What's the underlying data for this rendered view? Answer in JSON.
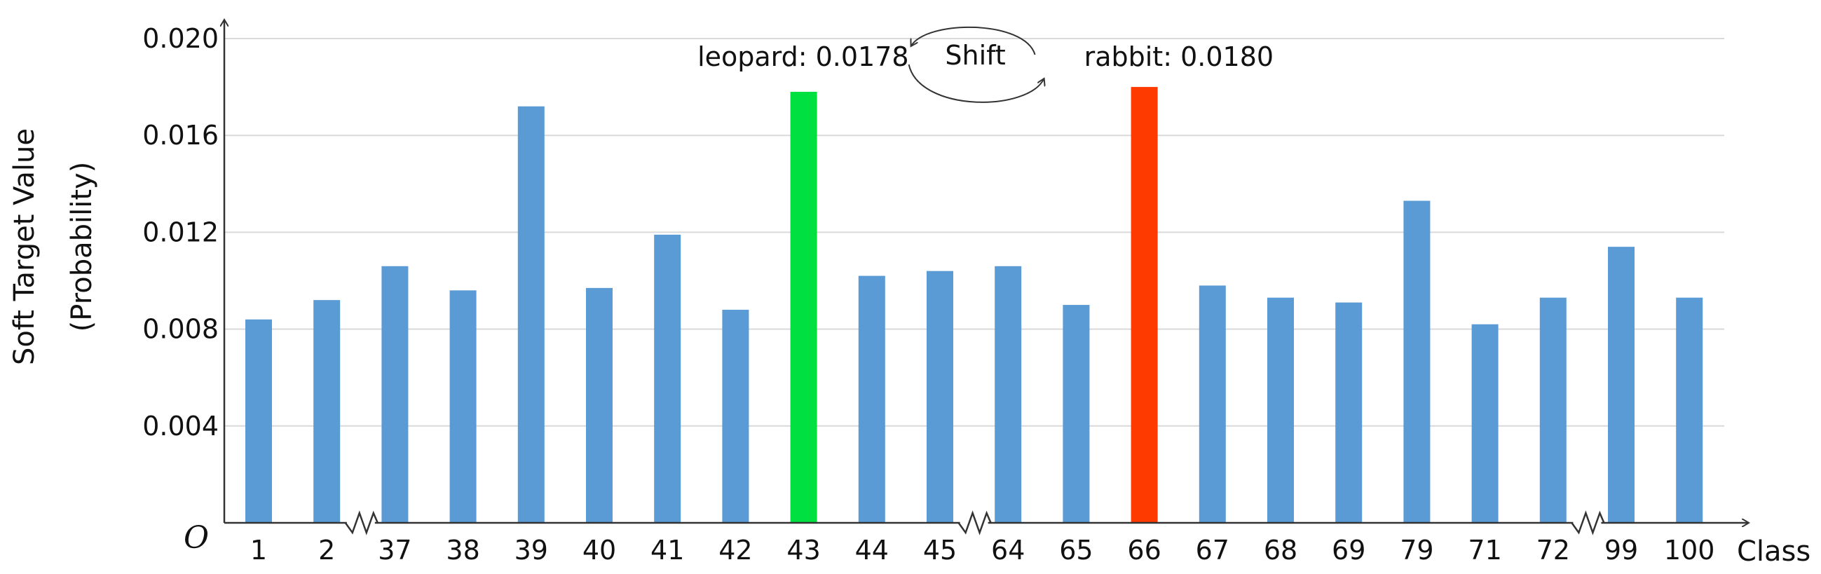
{
  "chart_data": {
    "type": "bar",
    "title": "",
    "ylabel": "Soft Target Value",
    "ylabel_sub": "(Probability)",
    "xlabel": "Class",
    "origin_label": "O",
    "ylim": [
      0,
      0.02
    ],
    "yticks": [
      "0.004",
      "0.008",
      "0.012",
      "0.016",
      "0.020"
    ],
    "ytick_values": [
      0.004,
      0.008,
      0.012,
      0.016,
      0.02
    ],
    "grid": true,
    "categories": [
      "1",
      "2",
      "37",
      "38",
      "39",
      "40",
      "41",
      "42",
      "43",
      "44",
      "45",
      "64",
      "65",
      "66",
      "67",
      "68",
      "69",
      "79",
      "71",
      "72",
      "99",
      "100"
    ],
    "values": [
      0.0084,
      0.0092,
      0.0106,
      0.0096,
      0.0172,
      0.0097,
      0.0119,
      0.0088,
      0.0178,
      0.0102,
      0.0104,
      0.0106,
      0.009,
      0.018,
      0.0098,
      0.0093,
      0.0091,
      0.0133,
      0.0082,
      0.0093,
      0.0114,
      0.0093
    ],
    "axis_breaks_after": [
      "2",
      "45",
      "72"
    ],
    "colors": {
      "default": "#5B9BD5",
      "leopard": "#00E040",
      "rabbit": "#FF3A00",
      "grid": "#d9d9d9",
      "axis": "#333333"
    },
    "highlights": [
      {
        "category": "43",
        "color_key": "leopard",
        "label": "leopard: 0.0178"
      },
      {
        "category": "66",
        "color_key": "rabbit",
        "label": "rabbit: 0.0180"
      }
    ],
    "annotations": {
      "shift_label": "Shift"
    }
  }
}
